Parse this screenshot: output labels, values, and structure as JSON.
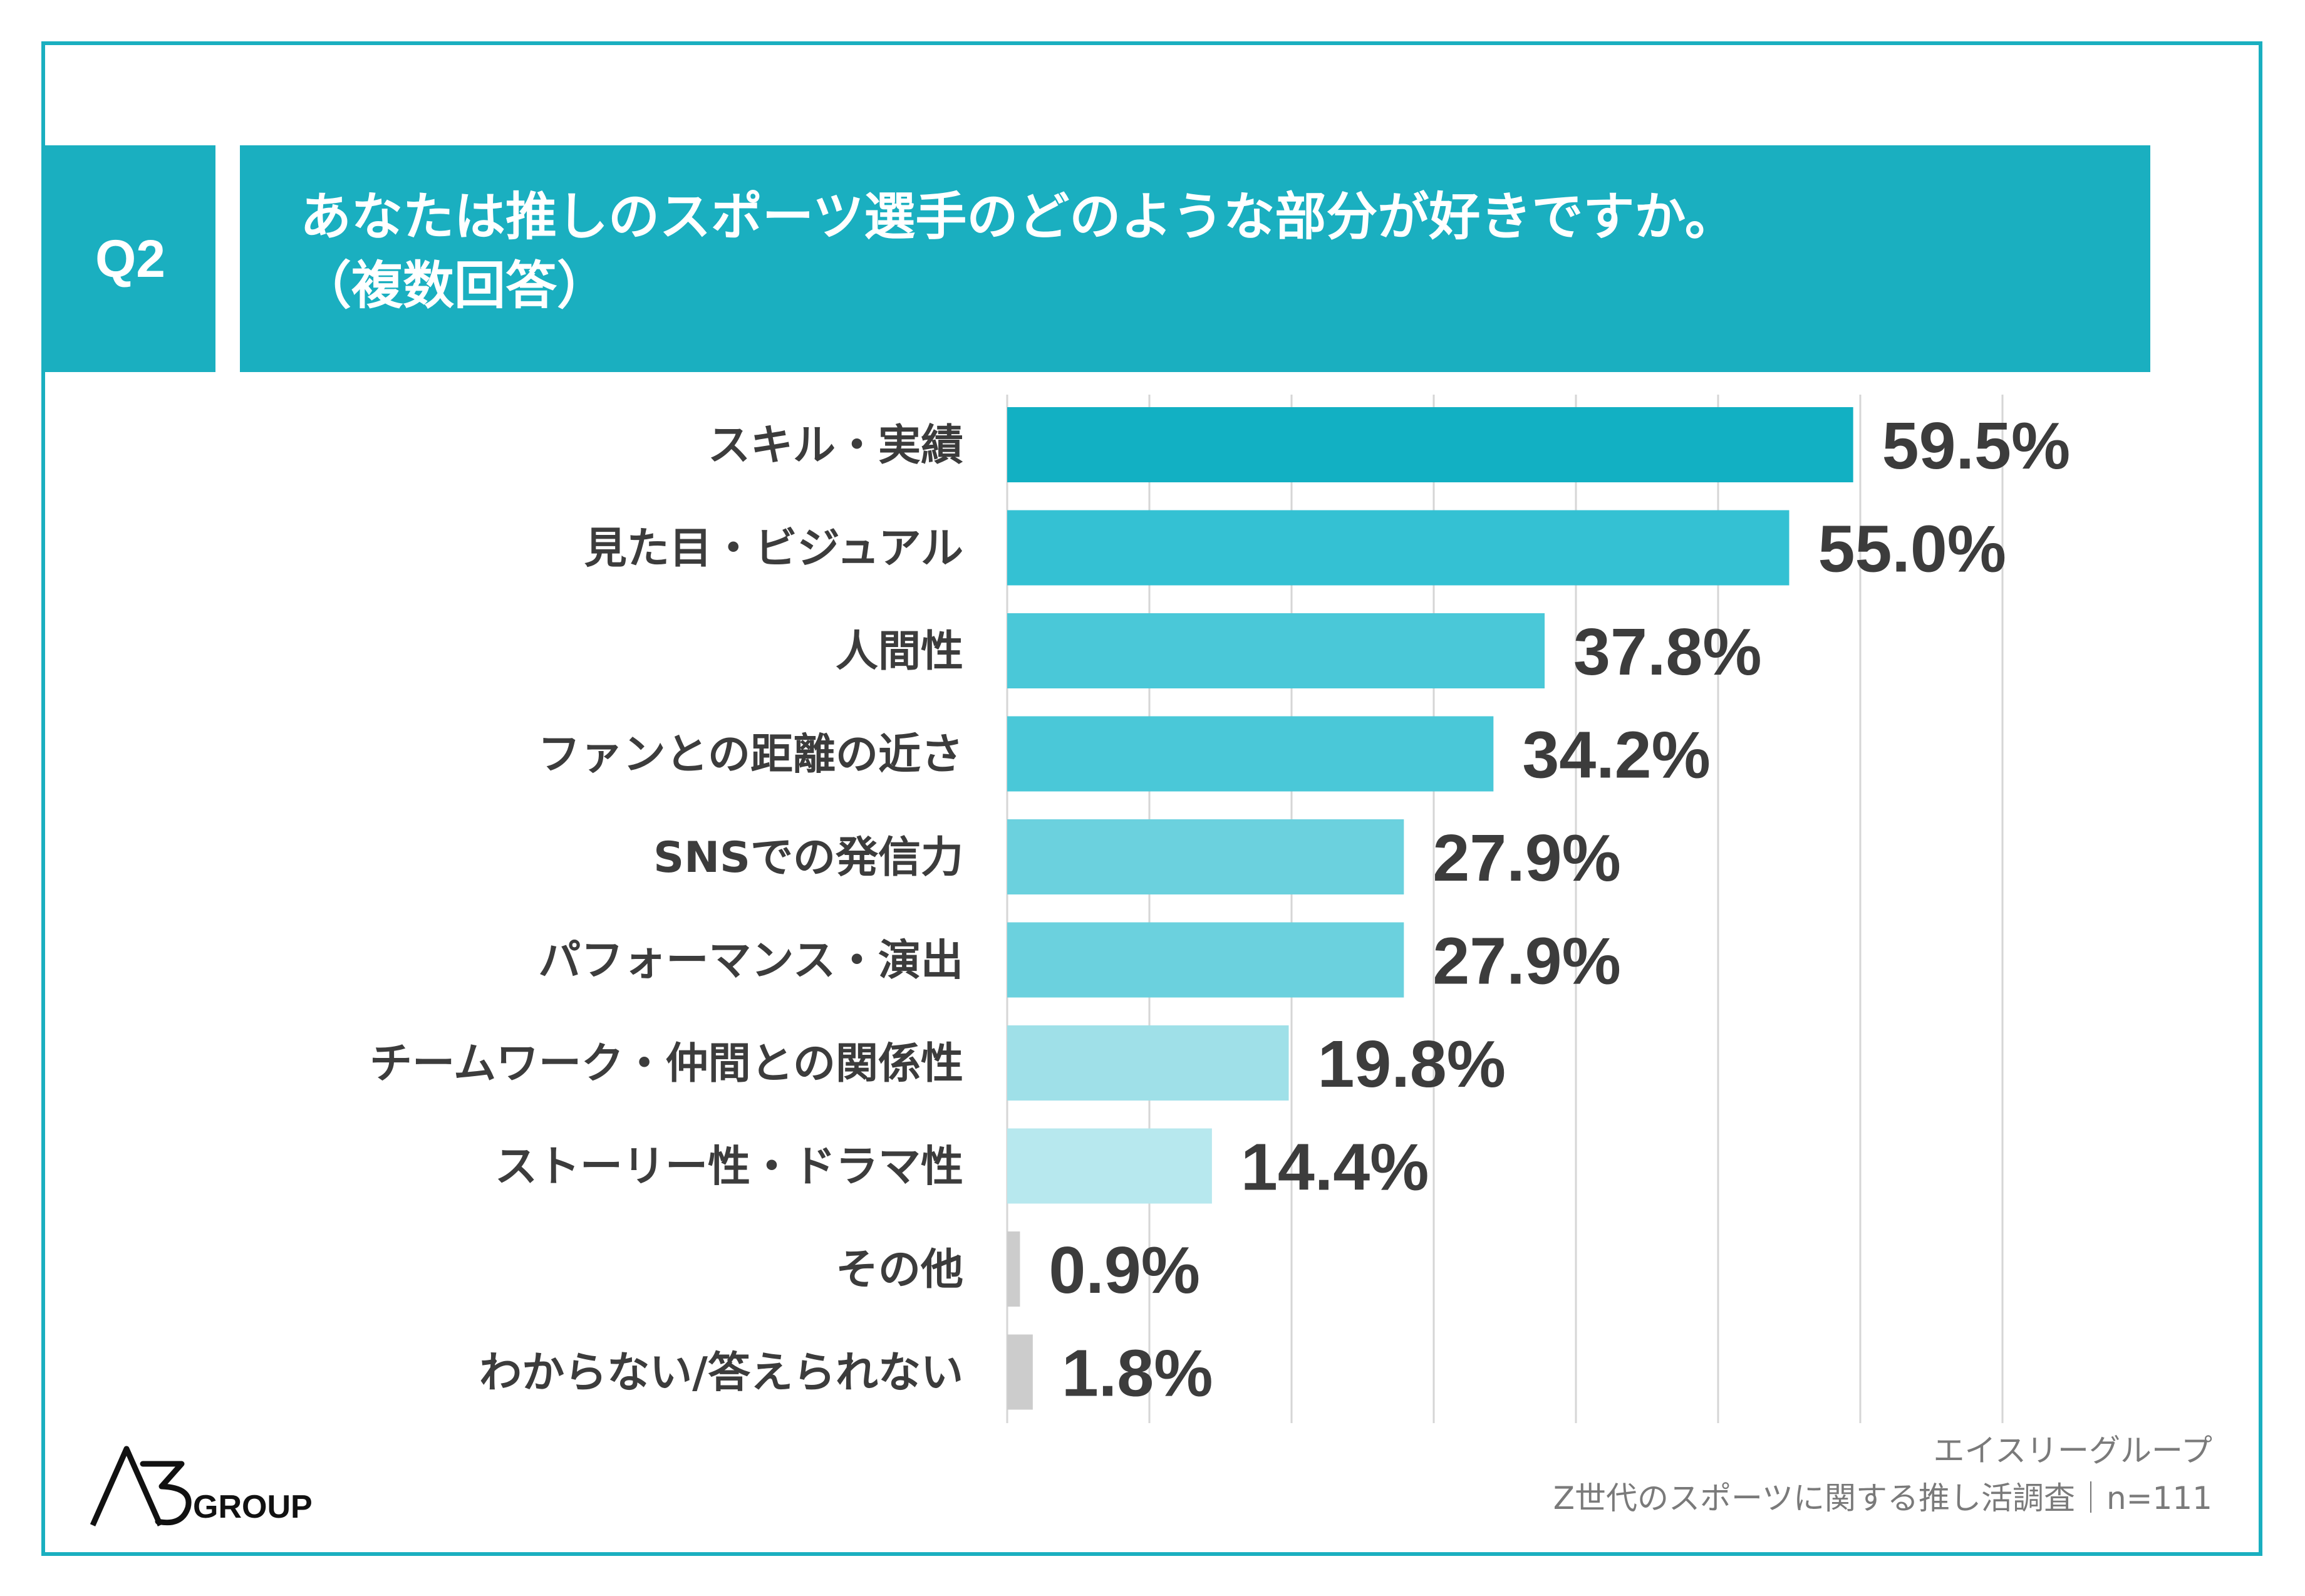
{
  "header": {
    "q_label": "Q2",
    "title_line1": "あなたは推しのスポーツ選手のどのような部分が好きですか。",
    "title_line2": "（複数回答）"
  },
  "colors": {
    "accent": "#1aafc0",
    "bar_shades": [
      "#12b0c3",
      "#34c1d3",
      "#4ac8d8",
      "#4ac8d8",
      "#6bd1de",
      "#6bd1de",
      "#9fe0e8",
      "#b7e8ee",
      "#cccccc",
      "#cccccc"
    ],
    "label_text": "#3c3c3c",
    "grid": "#d6d6d6"
  },
  "chart_data": {
    "type": "bar",
    "orientation": "horizontal",
    "categories": [
      "スキル・実績",
      "見た目・ビジュアル",
      "人間性",
      "ファンとの距離の近さ",
      "SNSでの発信力",
      "パフォーマンス・演出",
      "チームワーク・仲間との関係性",
      "ストーリー性・ドラマ性",
      "その他",
      "わからない/答えられない"
    ],
    "values": [
      59.5,
      55.0,
      37.8,
      34.2,
      27.9,
      27.9,
      19.8,
      14.4,
      0.9,
      1.8
    ],
    "value_labels": [
      "59.5%",
      "55.0%",
      "37.8%",
      "34.2%",
      "27.9%",
      "27.9%",
      "19.8%",
      "14.4%",
      "0.9%",
      "1.8%"
    ],
    "xlim": [
      0,
      70
    ],
    "grid": true,
    "legend": "none"
  },
  "logo": {
    "mark": "A3",
    "text": "GROUP"
  },
  "footer": {
    "line1": "エイスリーグループ",
    "line2": "Z世代のスポーツに関する推し活調査｜n=111"
  }
}
